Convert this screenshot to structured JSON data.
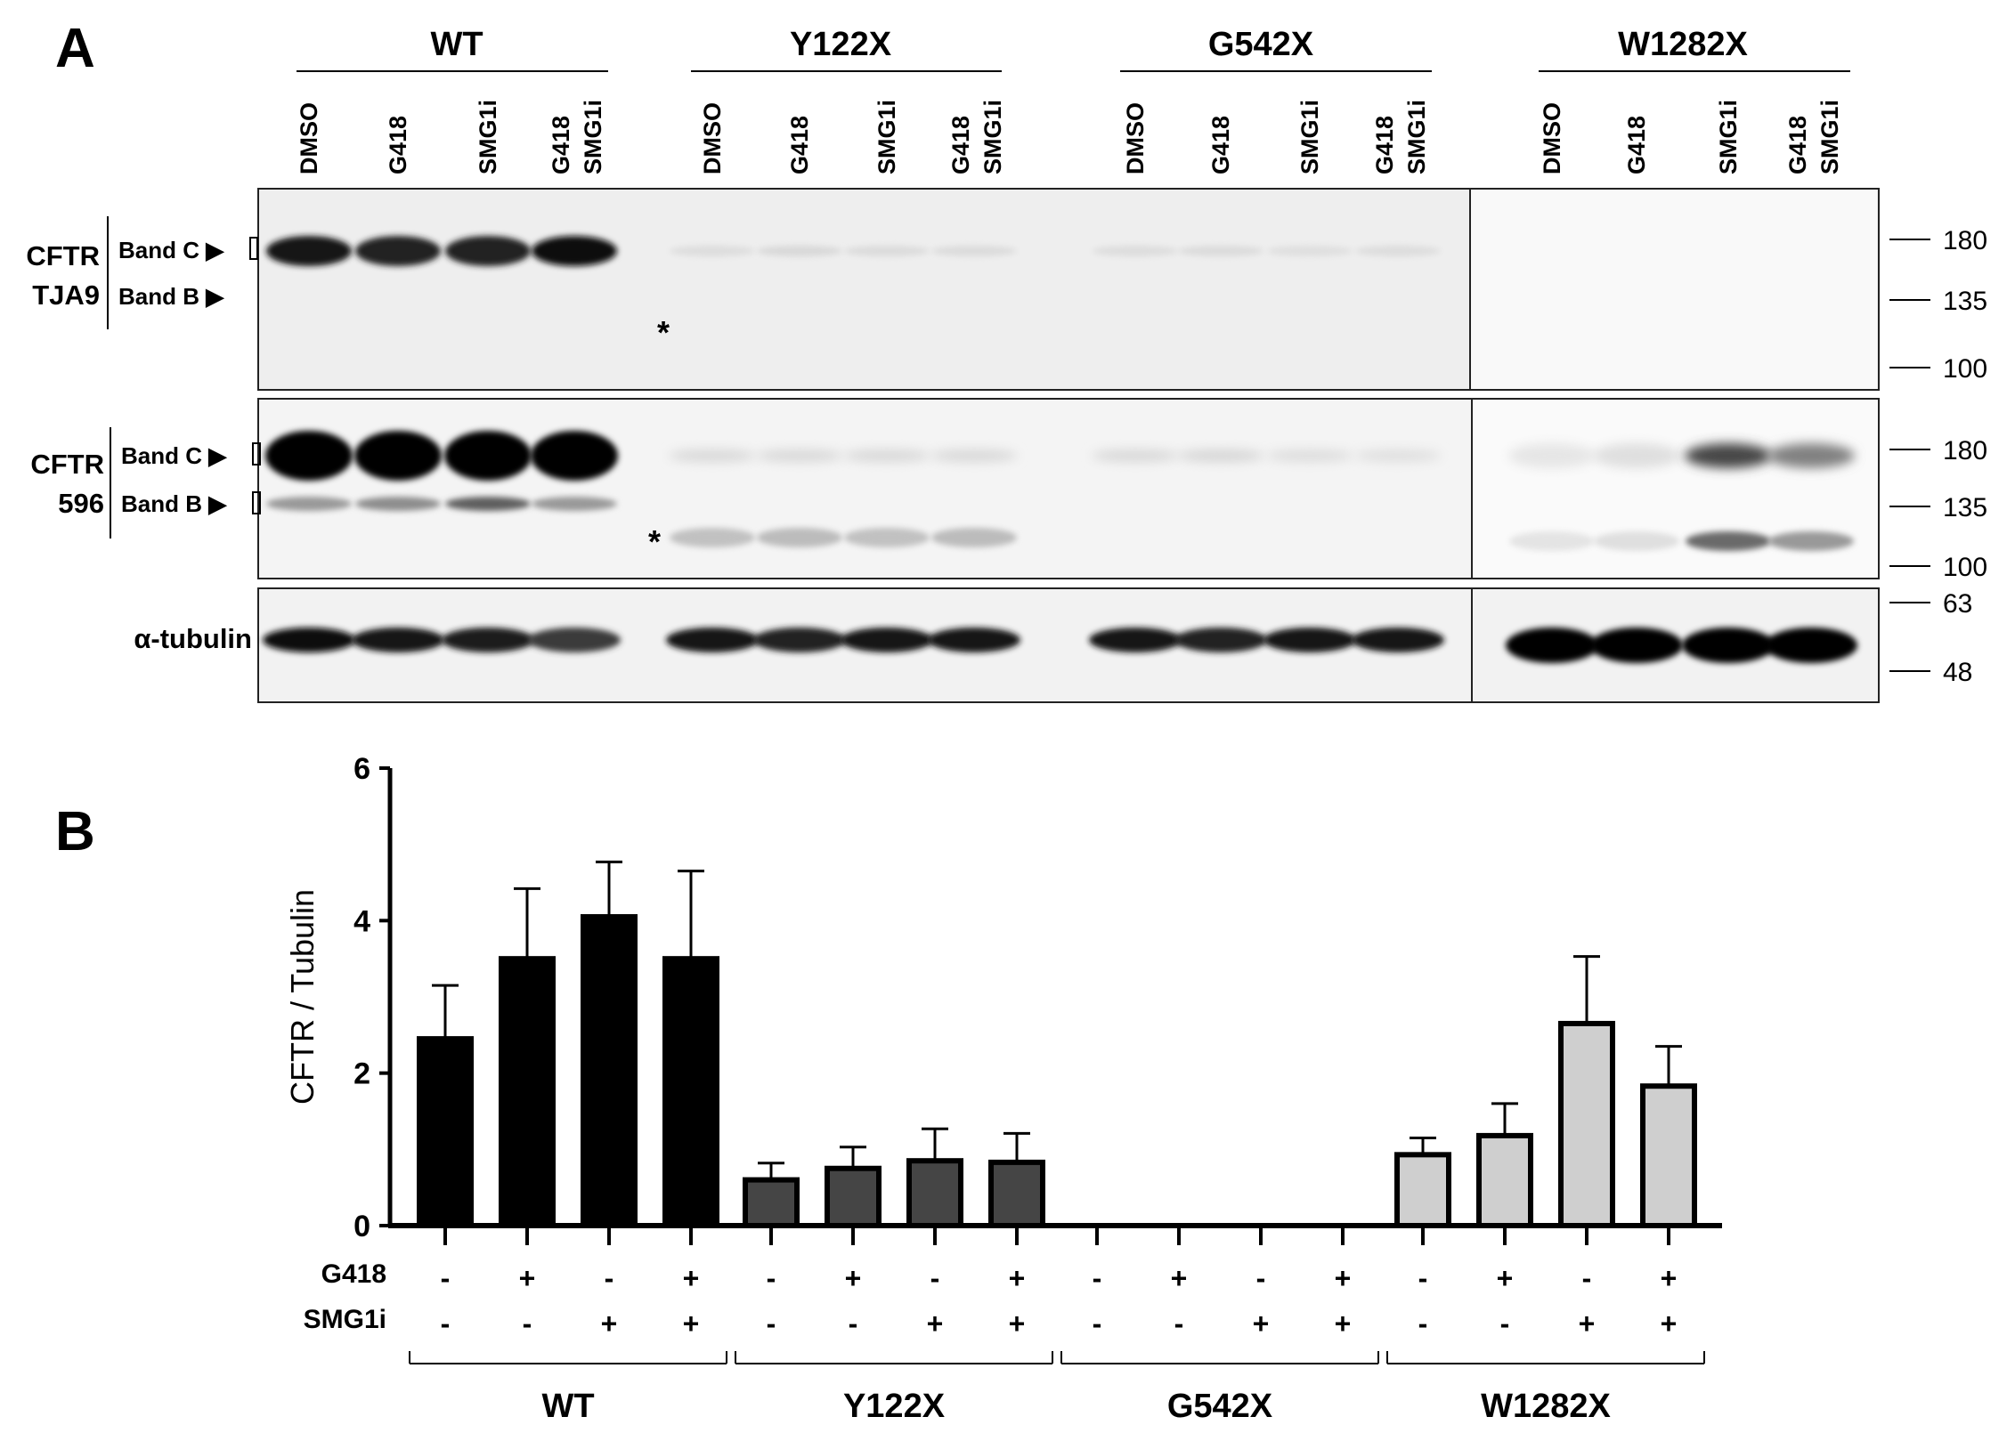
{
  "panel_a": {
    "letter": "A",
    "groups": [
      "WT",
      "Y122X",
      "G542X",
      "W1282X"
    ],
    "lanes": [
      "DMSO",
      "G418",
      "SMG1i",
      "G418 SMG1i"
    ],
    "blots": [
      {
        "label_lines": [
          "CFTR",
          "TJA9"
        ],
        "bands": [
          "Band C ▶",
          "Band B ▶"
        ],
        "asterisk": "*",
        "markers": [
          "180",
          "135",
          "100"
        ]
      },
      {
        "label_lines": [
          "CFTR",
          "596"
        ],
        "bands": [
          "Band C ▶",
          "Band B ▶"
        ],
        "asterisk": "*",
        "markers": [
          "180",
          "135",
          "100"
        ]
      },
      {
        "label_lines": [
          "α-tubulin"
        ],
        "bands": [],
        "markers": [
          "63",
          "48"
        ]
      }
    ],
    "band_intensity": {
      "tja9_band_c": [
        [
          0.9,
          0.85,
          0.85,
          0.95
        ],
        [
          0.06,
          0.08,
          0.07,
          0.07
        ],
        [
          0.06,
          0.07,
          0.05,
          0.06
        ],
        [
          0.0,
          0.0,
          0.0,
          0.0
        ]
      ],
      "596_band_c": [
        [
          1.0,
          1.0,
          1.0,
          1.0
        ],
        [
          0.08,
          0.08,
          0.08,
          0.08
        ],
        [
          0.08,
          0.09,
          0.06,
          0.05
        ],
        [
          0.02,
          0.05,
          0.7,
          0.45
        ]
      ],
      "596_band_b": [
        [
          0.35,
          0.4,
          0.6,
          0.35
        ],
        [
          0.18,
          0.2,
          0.18,
          0.2
        ],
        [
          0.0,
          0.0,
          0.0,
          0.0
        ],
        [
          0.03,
          0.05,
          0.55,
          0.35
        ]
      ],
      "tubulin": [
        [
          0.95,
          0.92,
          0.88,
          0.75
        ],
        [
          0.9,
          0.85,
          0.9,
          0.9
        ],
        [
          0.9,
          0.85,
          0.9,
          0.92
        ],
        [
          1.0,
          1.0,
          1.0,
          1.0
        ]
      ]
    }
  },
  "chart_data": {
    "type": "bar",
    "panel_letter": "B",
    "ylabel": "CFTR / Tubulin",
    "ylim": [
      0,
      6
    ],
    "yticks": [
      "0",
      "2",
      "4",
      "6"
    ],
    "groups": [
      "WT",
      "Y122X",
      "G542X",
      "W1282X"
    ],
    "treatments": [
      {
        "label": "G418",
        "values": [
          "-",
          "+",
          "-",
          "+"
        ]
      },
      {
        "label": "SMG1i",
        "values": [
          "-",
          "-",
          "+",
          "+"
        ]
      }
    ],
    "series": [
      {
        "values": [
          2.45,
          3.5,
          4.05,
          3.5
        ],
        "errors": [
          0.7,
          0.92,
          0.72,
          1.15
        ]
      },
      {
        "values": [
          0.6,
          0.75,
          0.85,
          0.83
        ],
        "errors": [
          0.22,
          0.28,
          0.42,
          0.38
        ]
      },
      {
        "values": [
          0.0,
          0.0,
          0.0,
          0.0
        ],
        "errors": [
          0.0,
          0.0,
          0.0,
          0.0
        ]
      },
      {
        "values": [
          0.93,
          1.18,
          2.65,
          1.83
        ],
        "errors": [
          0.22,
          0.42,
          0.88,
          0.52
        ]
      }
    ],
    "colors": [
      "#000000",
      "#454545",
      "#8a8a8a",
      "#cfcfcf"
    ]
  }
}
